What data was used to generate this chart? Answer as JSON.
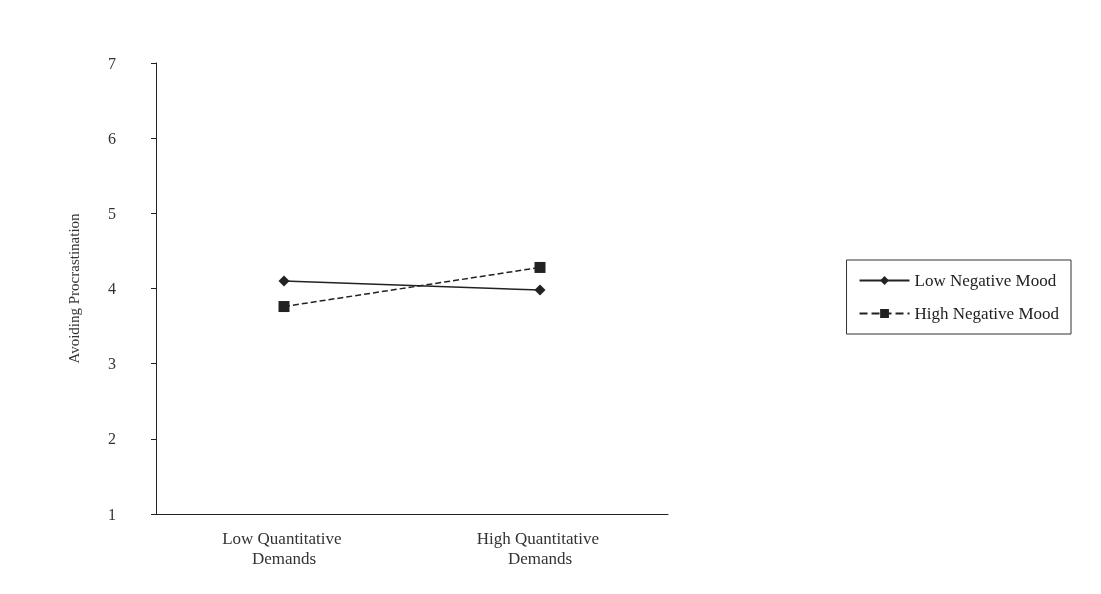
{
  "chart_data": {
    "type": "line",
    "ylabel": "Avoiding Procrastination",
    "categories": [
      "Low Quantitative Demands",
      "High Quantitative Demands"
    ],
    "series": [
      {
        "name": "Low Negative Mood",
        "color": "#222222",
        "values": [
          4.1,
          3.98
        ],
        "marker": "diamond",
        "line_style": "solid"
      },
      {
        "name": "High Negative Mood",
        "color": "#222222",
        "values": [
          3.76,
          4.28
        ],
        "marker": "square",
        "line_style": "dashed"
      }
    ],
    "ylim": [
      1,
      7
    ],
    "yticks": [
      1,
      2,
      3,
      4,
      5,
      6,
      7
    ],
    "grid": false,
    "legend": "right"
  }
}
